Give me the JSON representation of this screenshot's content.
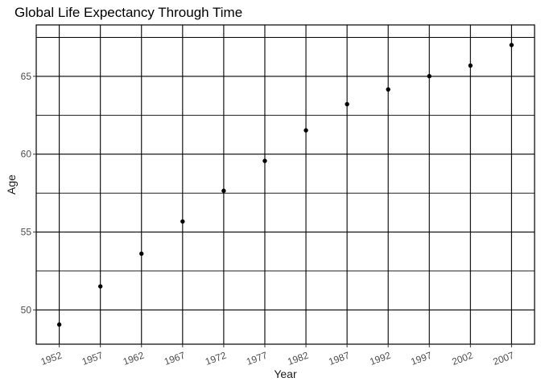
{
  "chart_data": {
    "type": "scatter",
    "title": "Global Life Expectancy Through Time",
    "xlabel": "Year",
    "ylabel": "Age",
    "x": [
      1952,
      1957,
      1962,
      1967,
      1972,
      1977,
      1982,
      1987,
      1992,
      1997,
      2002,
      2007
    ],
    "y": [
      49.06,
      51.51,
      53.61,
      55.68,
      57.65,
      59.57,
      61.53,
      63.21,
      64.16,
      65.01,
      65.69,
      67.01
    ],
    "xticks": [
      "1952",
      "1957",
      "1962",
      "1967",
      "1972",
      "1977",
      "1982",
      "1987",
      "1992",
      "1997",
      "2002",
      "2007"
    ],
    "yticks": [
      50,
      55,
      60,
      65
    ],
    "ylim": [
      47.8,
      68.3
    ],
    "xlim": [
      1949.2,
      2009.8
    ],
    "grid": true,
    "point_color": "#000000"
  }
}
